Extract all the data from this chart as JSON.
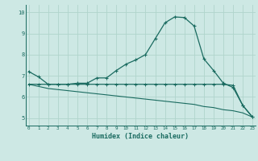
{
  "xlabel": "Humidex (Indice chaleur)",
  "background_color": "#cde8e4",
  "line_color": "#1a6b60",
  "grid_color": "#b0d4cc",
  "curve1_x": [
    0,
    1,
    2,
    3,
    4,
    5,
    6,
    7,
    8,
    9,
    10,
    11,
    12,
    13,
    14,
    15,
    16,
    17,
    18,
    19,
    20,
    21,
    22,
    23
  ],
  "curve1_y": [
    7.2,
    6.95,
    6.6,
    6.6,
    6.6,
    6.65,
    6.65,
    6.9,
    6.9,
    7.25,
    7.55,
    7.75,
    8.0,
    8.75,
    9.5,
    9.78,
    9.75,
    9.35,
    7.8,
    7.25,
    6.65,
    6.45,
    5.6,
    5.05
  ],
  "curve2_x": [
    0,
    1,
    2,
    3,
    4,
    5,
    6,
    7,
    8,
    9,
    10,
    11,
    12,
    13,
    14,
    15,
    16,
    17,
    18,
    19,
    20,
    21,
    22,
    23
  ],
  "curve2_y": [
    6.6,
    6.6,
    6.6,
    6.6,
    6.6,
    6.6,
    6.6,
    6.6,
    6.6,
    6.6,
    6.6,
    6.6,
    6.6,
    6.6,
    6.6,
    6.6,
    6.6,
    6.6,
    6.6,
    6.6,
    6.6,
    6.55,
    5.6,
    5.05
  ],
  "curve3_x": [
    0,
    1,
    2,
    3,
    4,
    5,
    6,
    7,
    8,
    9,
    10,
    11,
    12,
    13,
    14,
    15,
    16,
    17,
    18,
    19,
    20,
    21,
    22,
    23
  ],
  "curve3_y": [
    6.6,
    6.5,
    6.4,
    6.35,
    6.3,
    6.25,
    6.2,
    6.15,
    6.1,
    6.05,
    6.0,
    5.95,
    5.9,
    5.85,
    5.8,
    5.75,
    5.7,
    5.65,
    5.55,
    5.5,
    5.4,
    5.35,
    5.25,
    5.05
  ],
  "xlim": [
    -0.3,
    23.3
  ],
  "ylim": [
    4.65,
    10.35
  ],
  "yticks": [
    5,
    6,
    7,
    8,
    9,
    10
  ],
  "xticks": [
    0,
    1,
    2,
    3,
    4,
    5,
    6,
    7,
    8,
    9,
    10,
    11,
    12,
    13,
    14,
    15,
    16,
    17,
    18,
    19,
    20,
    21,
    22,
    23
  ]
}
